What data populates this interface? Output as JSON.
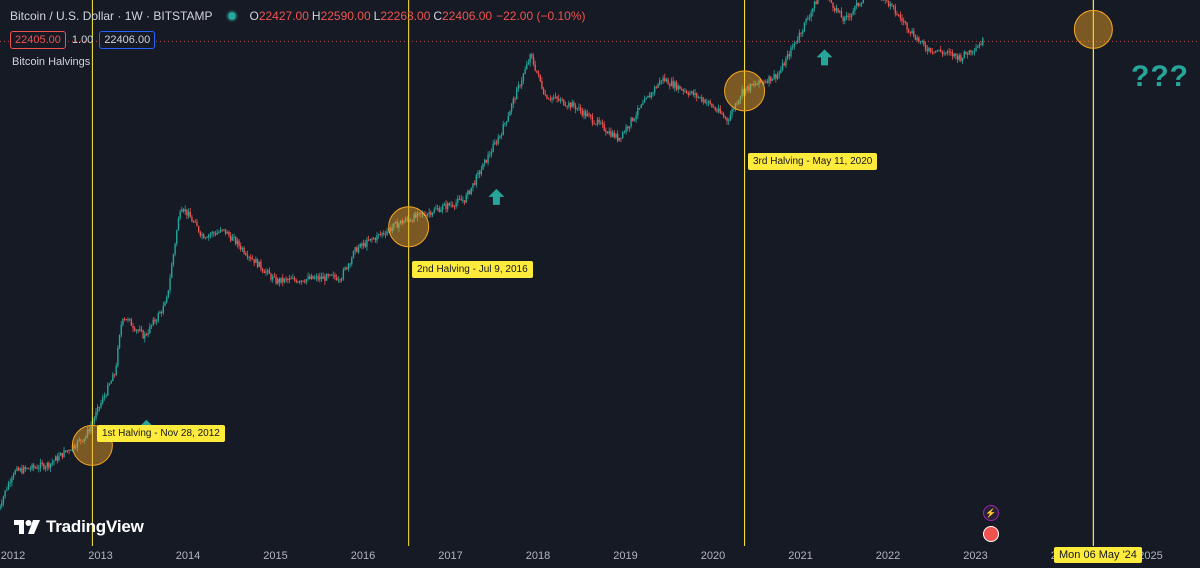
{
  "header": {
    "symbol": "Bitcoin / U.S. Dollar · 1W · BITSTAMP",
    "ohlc": [
      {
        "key": "O",
        "value": "22427.00"
      },
      {
        "key": "H",
        "value": "22590.00"
      },
      {
        "key": "L",
        "value": "22263.00"
      },
      {
        "key": "C",
        "value": "22406.00"
      }
    ],
    "change": "−22.00 (−0.10%)",
    "sell_price": "22405.00",
    "spread": "1.00",
    "buy_price": "22406.00",
    "indicator": "Bitcoin Halvings"
  },
  "brand": {
    "name": "TradingView"
  },
  "icons": {
    "status": "live-dot-icon",
    "events": "lightning-icon",
    "country": "us-flag-icon"
  },
  "annotations": {
    "halvings": [
      {
        "label": "1st Halving - Nov 28, 2012",
        "date": "2012-11-28"
      },
      {
        "label": "2nd Halving - Jul 9, 2016",
        "date": "2016-07-09"
      },
      {
        "label": "3rd Halving - May 11, 2020",
        "date": "2020-05-11"
      }
    ],
    "future_date_label": "Mon 06 May '24",
    "question": "???"
  },
  "colors": {
    "background": "#161a25",
    "up": "#26a69a",
    "down": "#ef5350",
    "halving_line": "#ffeb3b",
    "circle_fill": "#f5a623"
  },
  "chart_data": {
    "type": "candlestick",
    "title": "Bitcoin / U.S. Dollar · 1W · BITSTAMP",
    "yscale": "log",
    "grid": false,
    "x_tick_labels": [
      "2012",
      "2013",
      "2014",
      "2015",
      "2016",
      "2017",
      "2018",
      "2019",
      "2020",
      "2021",
      "2022",
      "2023",
      "2024",
      "2025"
    ],
    "last_price": 22406,
    "price_anchors": [
      {
        "date": "2011-11",
        "price": 3
      },
      {
        "date": "2012-01",
        "price": 6
      },
      {
        "date": "2012-06",
        "price": 7
      },
      {
        "date": "2012-11",
        "price": 12
      },
      {
        "date": "2013-03",
        "price": 40
      },
      {
        "date": "2013-04",
        "price": 120
      },
      {
        "date": "2013-07",
        "price": 80
      },
      {
        "date": "2013-10",
        "price": 150
      },
      {
        "date": "2013-12",
        "price": 1000
      },
      {
        "date": "2014-03",
        "price": 550
      },
      {
        "date": "2014-06",
        "price": 600
      },
      {
        "date": "2015-01",
        "price": 230
      },
      {
        "date": "2015-10",
        "price": 250
      },
      {
        "date": "2015-12",
        "price": 420
      },
      {
        "date": "2016-06",
        "price": 700
      },
      {
        "date": "2017-03",
        "price": 1100
      },
      {
        "date": "2017-08",
        "price": 4000
      },
      {
        "date": "2017-12",
        "price": 17000
      },
      {
        "date": "2018-02",
        "price": 8000
      },
      {
        "date": "2018-06",
        "price": 6500
      },
      {
        "date": "2018-12",
        "price": 3500
      },
      {
        "date": "2019-06",
        "price": 11000
      },
      {
        "date": "2019-12",
        "price": 7200
      },
      {
        "date": "2020-03",
        "price": 5000
      },
      {
        "date": "2020-05",
        "price": 8700
      },
      {
        "date": "2020-10",
        "price": 12000
      },
      {
        "date": "2021-04",
        "price": 60000
      },
      {
        "date": "2021-07",
        "price": 33000
      },
      {
        "date": "2021-11",
        "price": 65000
      },
      {
        "date": "2022-06",
        "price": 20000
      },
      {
        "date": "2022-11",
        "price": 16500
      },
      {
        "date": "2023-02",
        "price": 22400
      }
    ]
  }
}
